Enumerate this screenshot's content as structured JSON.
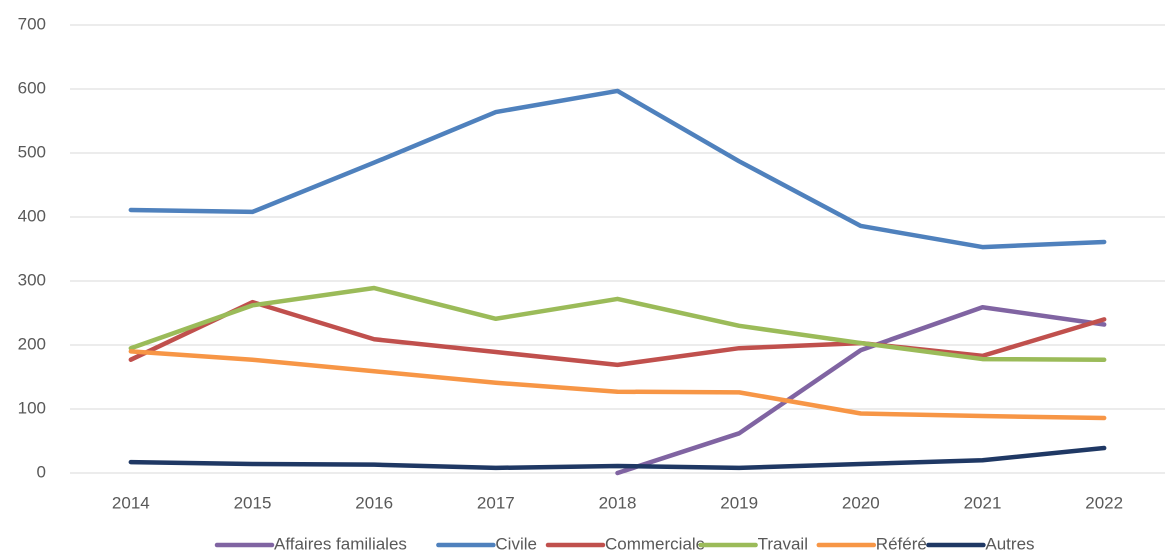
{
  "chart_data": {
    "type": "line",
    "categories": [
      "2014",
      "2015",
      "2016",
      "2017",
      "2018",
      "2019",
      "2020",
      "2021",
      "2022"
    ],
    "series": [
      {
        "name": "Affaires familiales",
        "color": "#8064a2",
        "values": [
          null,
          null,
          null,
          null,
          0,
          62,
          192,
          259,
          232
        ]
      },
      {
        "name": "Civile",
        "color": "#4f81bd",
        "values": [
          411,
          408,
          485,
          564,
          597,
          487,
          386,
          353,
          361
        ]
      },
      {
        "name": "Commerciale",
        "color": "#c0504d",
        "values": [
          177,
          267,
          209,
          189,
          169,
          195,
          203,
          183,
          240
        ]
      },
      {
        "name": "Travail",
        "color": "#9bbb59",
        "values": [
          195,
          262,
          289,
          241,
          272,
          230,
          203,
          178,
          177
        ]
      },
      {
        "name": "Référé",
        "color": "#f79646",
        "values": [
          190,
          177,
          159,
          141,
          127,
          126,
          93,
          89,
          86
        ]
      },
      {
        "name": "Autres",
        "color": "#1f3864",
        "values": [
          17,
          14,
          13,
          8,
          11,
          8,
          14,
          20,
          39
        ]
      }
    ],
    "ylim": [
      0,
      700
    ],
    "yticks": [
      0,
      100,
      200,
      300,
      400,
      500,
      600,
      700
    ],
    "grid": true,
    "legend": "bottom"
  }
}
